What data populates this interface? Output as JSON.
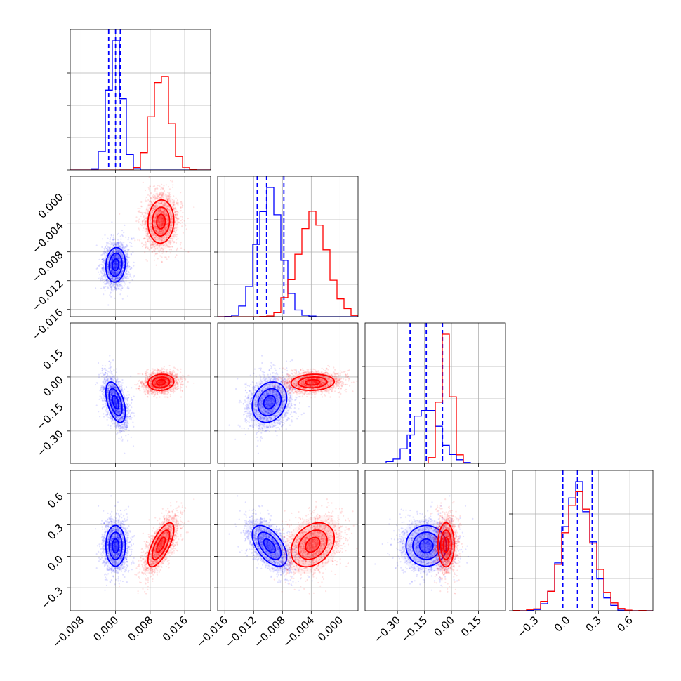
{
  "chart_data": {
    "type": "corner",
    "grid": true,
    "colors": {
      "blue": "#0000ff",
      "red": "#ff0000"
    },
    "parameters": [
      {
        "range": [
          -0.0105,
          0.022
        ],
        "ticks": [
          -0.008,
          0.0,
          0.008,
          0.016
        ],
        "tick_labels": [
          "−0.008",
          "0.000",
          "0.008",
          "0.016"
        ]
      },
      {
        "range": [
          -0.017,
          0.0025
        ],
        "ticks": [
          -0.016,
          -0.012,
          -0.008,
          -0.004,
          0.0
        ],
        "tick_labels": [
          "−0.016",
          "−0.012",
          "−0.008",
          "−0.004",
          "0.000"
        ]
      },
      {
        "range": [
          -0.48,
          0.3
        ],
        "ticks": [
          -0.3,
          -0.15,
          0.0,
          0.15
        ],
        "tick_labels": [
          "−0.30",
          "−0.15",
          "0.00",
          "0.15"
        ]
      },
      {
        "range": [
          -0.52,
          0.82
        ],
        "ticks": [
          -0.3,
          0.0,
          0.3,
          0.6
        ],
        "tick_labels": [
          "−0.3",
          "0.0",
          "0.3",
          "0.6"
        ]
      }
    ],
    "distributions": [
      {
        "name": "blue",
        "color": "#0000ff",
        "mean": [
          0.0,
          -0.0098,
          -0.14,
          0.1
        ],
        "sd": [
          0.0015,
          0.0016,
          0.075,
          0.13
        ],
        "corr": [
          [
            1,
            0.1,
            -0.5,
            0.0
          ],
          [
            0.1,
            1,
            0.2,
            -0.55
          ],
          [
            -0.5,
            0.2,
            1,
            0.0
          ],
          [
            0.0,
            -0.55,
            0.0,
            1
          ]
        ],
        "quantiles": [
          [
            -0.0016,
            0.0,
            0.0011
          ],
          [
            -0.0115,
            -0.0102,
            -0.0078
          ],
          [
            -0.23,
            -0.14,
            -0.05
          ],
          [
            -0.04,
            0.1,
            0.24
          ]
        ]
      },
      {
        "name": "red",
        "color": "#ff0000",
        "mean": [
          0.0105,
          -0.0038,
          -0.03,
          0.11
        ],
        "sd": [
          0.002,
          0.002,
          0.03,
          0.14
        ],
        "corr": [
          [
            1,
            0.05,
            0.1,
            0.7
          ],
          [
            0.05,
            1,
            0.1,
            0.3
          ],
          [
            0.1,
            0.1,
            1,
            0.0
          ],
          [
            0.7,
            0.3,
            0.0,
            1
          ]
        ],
        "quantiles": null
      }
    ]
  }
}
